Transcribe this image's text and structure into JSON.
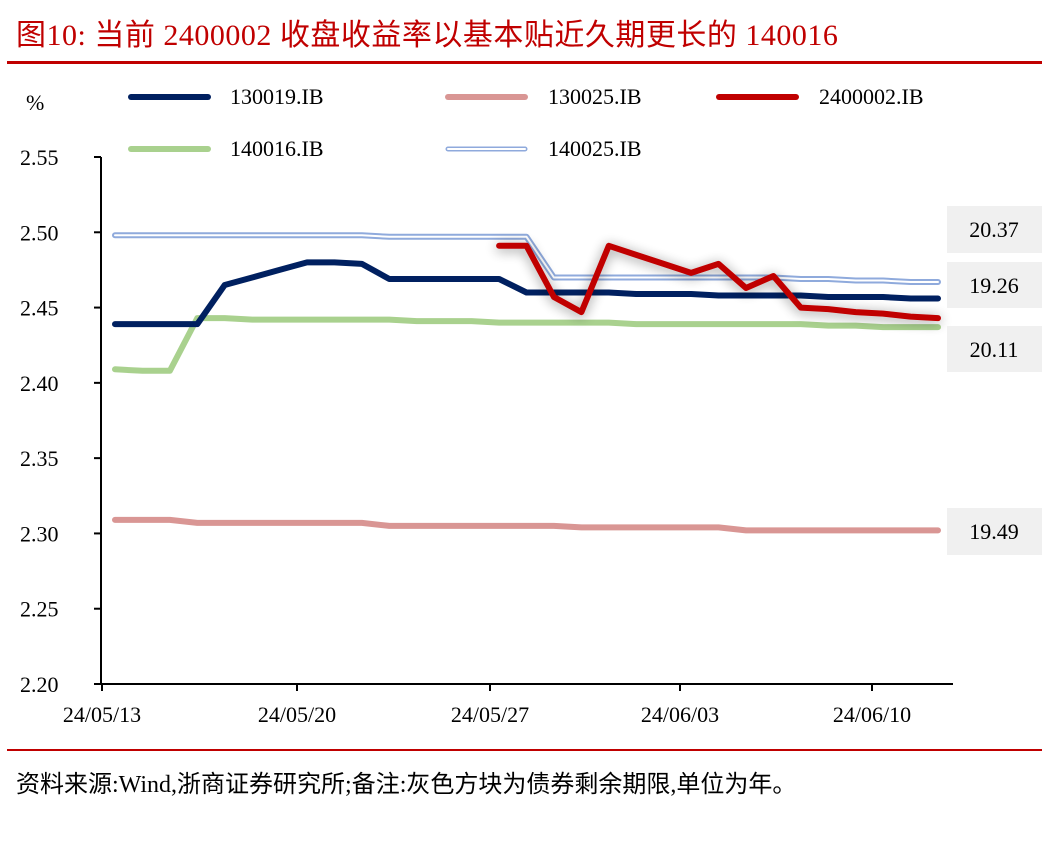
{
  "figure": {
    "title": "图10:  当前 2400002 收盘收益率以基本贴近久期更长的 140016",
    "footnote": "资料来源:Wind,浙商证券研究所;备注:灰色方块为债券剩余期限,单位为年。"
  },
  "chart_data": {
    "type": "line",
    "title": "当前 2400002 收盘收益率以基本贴近久期更长的 140016",
    "xlabel": "",
    "ylabel": "%",
    "ylim": [
      2.2,
      2.55
    ],
    "yticks": [
      "2.55",
      "2.50",
      "2.45",
      "2.40",
      "2.35",
      "2.30",
      "2.25",
      "2.20"
    ],
    "xticks": [
      "24/05/13",
      "24/05/20",
      "24/05/27",
      "24/06/03",
      "24/06/10"
    ],
    "grid": false,
    "legend_position": "top",
    "x": [
      "05/13",
      "05/14",
      "05/15",
      "05/16",
      "05/17",
      "05/18",
      "05/19",
      "05/20",
      "05/21",
      "05/22",
      "05/23",
      "05/24",
      "05/25",
      "05/26",
      "05/27",
      "05/28",
      "05/29",
      "05/30",
      "05/31",
      "06/01",
      "06/02",
      "06/03",
      "06/04",
      "06/05",
      "06/06",
      "06/07",
      "06/08",
      "06/09",
      "06/10",
      "06/11",
      "06/12"
    ],
    "series": [
      {
        "name": "130019.IB",
        "color": "#002060",
        "style": "solid",
        "values": [
          2.439,
          2.439,
          2.439,
          2.439,
          2.465,
          2.47,
          2.475,
          2.48,
          2.48,
          2.479,
          2.469,
          2.469,
          2.469,
          2.469,
          2.469,
          2.46,
          2.46,
          2.46,
          2.46,
          2.459,
          2.459,
          2.459,
          2.458,
          2.458,
          2.458,
          2.458,
          2.457,
          2.457,
          2.457,
          2.456,
          2.456
        ]
      },
      {
        "name": "130025.IB",
        "color": "#d99694",
        "style": "solid",
        "values": [
          2.309,
          2.309,
          2.309,
          2.307,
          2.307,
          2.307,
          2.307,
          2.307,
          2.307,
          2.307,
          2.305,
          2.305,
          2.305,
          2.305,
          2.305,
          2.305,
          2.305,
          2.304,
          2.304,
          2.304,
          2.304,
          2.304,
          2.304,
          2.302,
          2.302,
          2.302,
          2.302,
          2.302,
          2.302,
          2.302,
          2.302
        ]
      },
      {
        "name": "2400002.IB",
        "color": "#c00000",
        "style": "solid-shadow",
        "values": [
          null,
          null,
          null,
          null,
          null,
          null,
          null,
          null,
          null,
          null,
          null,
          null,
          null,
          null,
          2.491,
          2.491,
          2.457,
          2.447,
          2.491,
          2.485,
          2.479,
          2.473,
          2.479,
          2.463,
          2.471,
          2.45,
          2.449,
          2.447,
          2.446,
          2.444,
          2.443
        ]
      },
      {
        "name": "140016.IB",
        "color": "#a9d18e",
        "style": "solid",
        "values": [
          2.409,
          2.408,
          2.408,
          2.443,
          2.443,
          2.442,
          2.442,
          2.442,
          2.442,
          2.442,
          2.442,
          2.441,
          2.441,
          2.441,
          2.44,
          2.44,
          2.44,
          2.44,
          2.44,
          2.439,
          2.439,
          2.439,
          2.439,
          2.439,
          2.439,
          2.439,
          2.438,
          2.438,
          2.437,
          2.437,
          2.437
        ]
      },
      {
        "name": "140025.IB",
        "color": "#8faadc",
        "style": "double",
        "values": [
          2.498,
          2.498,
          2.498,
          2.498,
          2.498,
          2.498,
          2.498,
          2.498,
          2.498,
          2.498,
          2.497,
          2.497,
          2.497,
          2.497,
          2.497,
          2.497,
          2.47,
          2.47,
          2.47,
          2.47,
          2.47,
          2.47,
          2.47,
          2.47,
          2.47,
          2.469,
          2.469,
          2.468,
          2.468,
          2.467,
          2.467
        ]
      }
    ],
    "annotations": [
      {
        "text": "20.37",
        "series": "2400002.IB",
        "note": "remaining maturity (years)"
      },
      {
        "text": "19.26",
        "series": "130019.IB",
        "note": "remaining maturity (years)"
      },
      {
        "text": "20.11",
        "series": "140016.IB",
        "note": "remaining maturity (years)"
      },
      {
        "text": "19.49",
        "series": "130025.IB",
        "note": "remaining maturity (years)"
      }
    ]
  },
  "axis": {
    "unit_label": "%"
  },
  "legend": [
    {
      "label": "130019.IB"
    },
    {
      "label": "130025.IB"
    },
    {
      "label": "2400002.IB"
    },
    {
      "label": "140016.IB"
    },
    {
      "label": "140025.IB"
    }
  ],
  "maturity_boxes": [
    {
      "value": "20.37"
    },
    {
      "value": "19.26"
    },
    {
      "value": "20.11"
    },
    {
      "value": "19.49"
    }
  ],
  "colors": {
    "title_red": "#c00000",
    "box_gray": "#f0f0f0"
  }
}
